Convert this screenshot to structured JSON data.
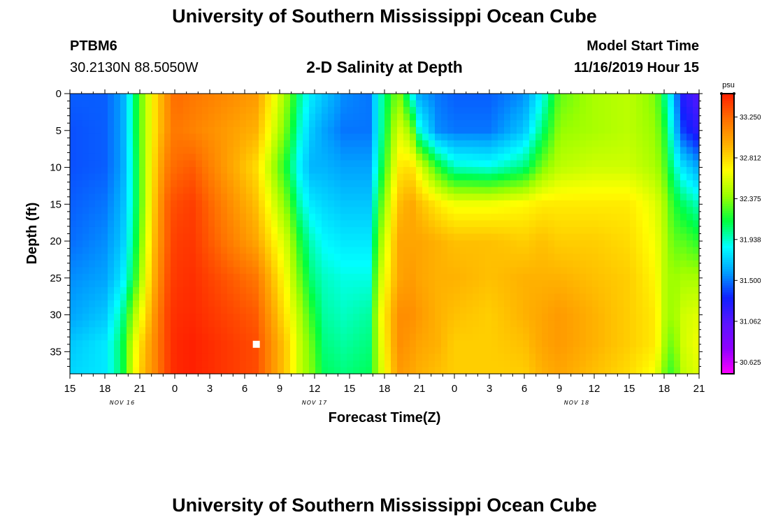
{
  "header": {
    "title": "University of Southern Mississippi Ocean Cube",
    "station_id": "PTBM6",
    "station_coords": "30.2130N 88.5050W",
    "product": "2-D Salinity at Depth",
    "run_label": "Model Start Time",
    "run_time": "11/16/2019 Hour 15"
  },
  "footer": {
    "title": "University of Southern Mississippi Ocean Cube"
  },
  "chart_data": {
    "type": "heatmap",
    "title": "2-D Salinity at Depth",
    "xlabel": "Forecast Time(Z)",
    "ylabel": "Depth (ft)",
    "x_range_hours": [
      0,
      54
    ],
    "x_start": "11/16/2019 15Z",
    "x_tick_labels": [
      "15",
      "18",
      "21",
      "0",
      "3",
      "6",
      "9",
      "12",
      "15",
      "18",
      "21",
      "0",
      "3",
      "6",
      "9",
      "12",
      "15",
      "18",
      "21"
    ],
    "date_labels": [
      {
        "label": "NOV 16",
        "hour": 4.5
      },
      {
        "label": "NOV 17",
        "hour": 21
      },
      {
        "label": "NOV 18",
        "hour": 43.5
      }
    ],
    "y_range_ft": [
      0,
      38
    ],
    "y_ticks": [
      0,
      5,
      10,
      15,
      20,
      25,
      30,
      35
    ],
    "colorbar": {
      "unit": "psu",
      "min": 30.5,
      "max": 33.5,
      "tick_labels": [
        "33.250",
        "32.812",
        "32.375",
        "31.938",
        "31.500",
        "31.062",
        "30.625"
      ],
      "tick_values": [
        33.25,
        32.812,
        32.375,
        31.938,
        31.5,
        31.062,
        30.625
      ],
      "colors": [
        "#ff00ff",
        "#9000ff",
        "#5a14ff",
        "#1020ff",
        "#00a0ff",
        "#00ffff",
        "#00ff40",
        "#9aff00",
        "#ffff00",
        "#ffb000",
        "#ff7000",
        "#ff2000"
      ]
    },
    "salinity_profiles": {
      "columns_hour": [
        0,
        3,
        4.5,
        5.5,
        6.4,
        7.2,
        8.2,
        9.0,
        10.5,
        16,
        18.8,
        19.8,
        20.8,
        21.8,
        23.5,
        25.7,
        26.5,
        28.2,
        29.3,
        30,
        31.6,
        33,
        36,
        39,
        40.5,
        42,
        45,
        48,
        50.3,
        51,
        51.8,
        52.5,
        54
      ],
      "rows_ft": [
        0,
        5,
        10,
        15,
        20,
        25,
        30,
        34,
        38
      ],
      "psu": [
        [
          31.45,
          31.42,
          31.42,
          31.45,
          31.48,
          31.55,
          31.6,
          31.7,
          31.75
        ],
        [
          31.45,
          31.45,
          31.45,
          31.5,
          31.55,
          31.6,
          31.7,
          31.8,
          31.8
        ],
        [
          31.6,
          31.6,
          31.6,
          31.65,
          31.7,
          31.8,
          32.0,
          32.1,
          32.1
        ],
        [
          32.05,
          32.05,
          32.0,
          32.0,
          32.05,
          32.15,
          32.45,
          32.6,
          32.65
        ],
        [
          32.45,
          32.45,
          32.45,
          32.45,
          32.5,
          32.6,
          32.75,
          32.9,
          32.95
        ],
        [
          32.75,
          32.75,
          32.8,
          32.85,
          32.9,
          32.95,
          33.05,
          33.1,
          33.1
        ],
        [
          33.05,
          33.05,
          33.15,
          33.25,
          33.25,
          33.3,
          33.35,
          33.35,
          33.35
        ],
        [
          33.25,
          33.2,
          33.25,
          33.35,
          33.4,
          33.42,
          33.45,
          33.47,
          33.47
        ],
        [
          33.2,
          33.15,
          33.3,
          33.4,
          33.42,
          33.45,
          33.47,
          33.5,
          33.5
        ],
        [
          33.05,
          32.95,
          32.8,
          32.9,
          33.0,
          33.2,
          33.3,
          33.35,
          33.35
        ],
        [
          32.35,
          32.25,
          32.1,
          32.3,
          32.5,
          32.6,
          32.7,
          32.8,
          32.8
        ],
        [
          32.0,
          31.9,
          31.8,
          31.95,
          32.15,
          32.3,
          32.45,
          32.5,
          32.5
        ],
        [
          31.8,
          31.7,
          31.65,
          31.8,
          31.95,
          32.05,
          32.2,
          32.3,
          32.35
        ],
        [
          31.7,
          31.6,
          31.65,
          31.75,
          31.85,
          31.95,
          32.0,
          32.05,
          32.1
        ],
        [
          31.55,
          31.5,
          31.6,
          31.7,
          31.8,
          31.9,
          31.95,
          32.0,
          32.05
        ],
        [
          31.5,
          31.5,
          31.6,
          31.7,
          31.8,
          31.9,
          32.0,
          32.05,
          32.1
        ],
        [
          31.9,
          31.9,
          32.0,
          32.2,
          32.35,
          32.5,
          32.6,
          32.55,
          32.5
        ],
        [
          32.4,
          32.6,
          32.75,
          32.9,
          33.0,
          33.0,
          33.1,
          33.1,
          33.05
        ],
        [
          31.9,
          32.4,
          32.8,
          33.0,
          33.0,
          33.05,
          33.1,
          33.05,
          33.0
        ],
        [
          31.6,
          31.9,
          32.6,
          32.9,
          33.0,
          33.0,
          33.05,
          33.0,
          32.95
        ],
        [
          31.5,
          31.55,
          32.2,
          32.75,
          32.95,
          32.95,
          32.95,
          32.95,
          32.9
        ],
        [
          31.45,
          31.5,
          31.95,
          32.65,
          32.9,
          32.95,
          32.9,
          32.85,
          32.85
        ],
        [
          31.45,
          31.5,
          31.9,
          32.65,
          32.9,
          32.9,
          32.85,
          32.85,
          32.85
        ],
        [
          31.55,
          31.7,
          32.05,
          32.7,
          32.85,
          32.95,
          32.95,
          32.9,
          32.85
        ],
        [
          31.85,
          32.05,
          32.35,
          32.75,
          32.9,
          32.95,
          33.0,
          33.0,
          32.95
        ],
        [
          32.3,
          32.4,
          32.5,
          32.75,
          32.85,
          32.95,
          33.05,
          33.05,
          33.0
        ],
        [
          32.45,
          32.45,
          32.55,
          32.75,
          32.85,
          32.9,
          32.95,
          32.95,
          32.9
        ],
        [
          32.5,
          32.5,
          32.55,
          32.75,
          32.8,
          32.85,
          32.85,
          32.85,
          32.8
        ],
        [
          32.35,
          32.4,
          32.45,
          32.6,
          32.65,
          32.7,
          32.75,
          32.75,
          32.65
        ],
        [
          32.05,
          32.2,
          32.3,
          32.45,
          32.5,
          32.5,
          32.5,
          32.45,
          32.35
        ],
        [
          31.7,
          31.8,
          32.0,
          32.2,
          32.3,
          32.4,
          32.4,
          32.3,
          32.2
        ],
        [
          31.25,
          31.4,
          31.8,
          32.1,
          32.3,
          32.45,
          32.55,
          32.55,
          32.5
        ],
        [
          31.05,
          31.2,
          31.6,
          31.95,
          32.2,
          32.45,
          32.6,
          32.65,
          32.6
        ]
      ]
    }
  }
}
